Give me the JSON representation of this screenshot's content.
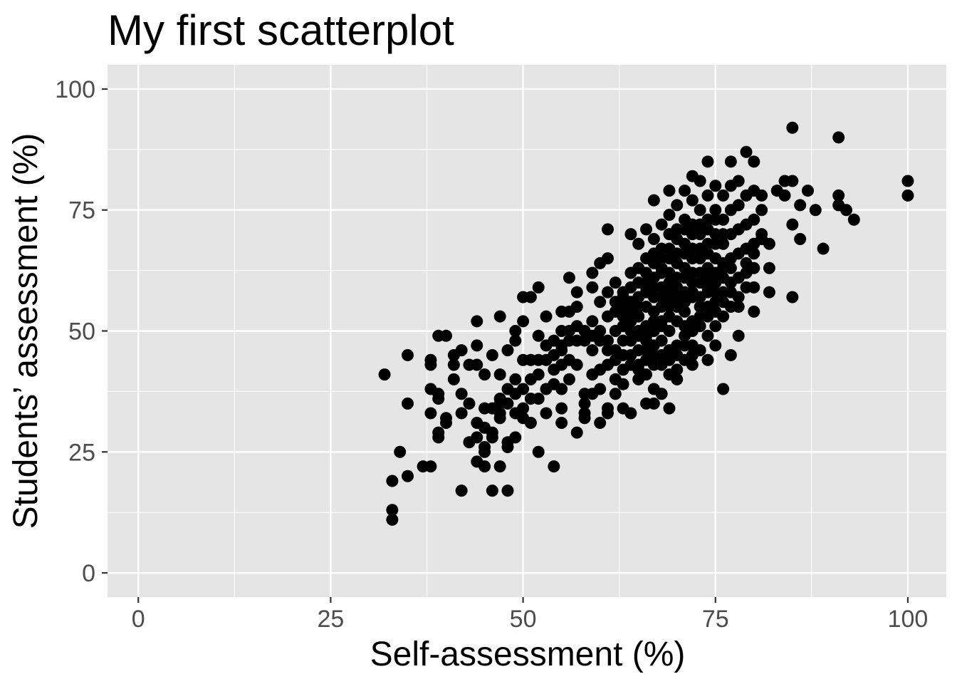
{
  "chart_data": {
    "type": "scatter",
    "title": "My first scatterplot",
    "xlabel": "Self-assessment (%)",
    "ylabel": "Students’ assessment (%)",
    "xlim": [
      -4,
      105
    ],
    "ylim": [
      -5,
      105
    ],
    "x_ticks": [
      0,
      25,
      50,
      75,
      100
    ],
    "y_ticks": [
      0,
      25,
      50,
      75,
      100
    ],
    "x_tick_labels": [
      "0",
      "25",
      "50",
      "75",
      "100"
    ],
    "y_tick_labels": [
      "0",
      "25",
      "50",
      "75",
      "100"
    ],
    "grid": true,
    "legend": "none",
    "colors": {
      "panel": "#e5e5e5",
      "grid": "#ffffff",
      "point": "#000000",
      "tick": "#4d4d4d",
      "tick_mark": "#333333"
    },
    "points": [
      [
        32,
        41
      ],
      [
        33,
        19
      ],
      [
        33,
        13
      ],
      [
        33,
        11
      ],
      [
        34,
        25
      ],
      [
        35,
        45
      ],
      [
        35,
        35
      ],
      [
        35,
        20
      ],
      [
        37,
        22
      ],
      [
        38,
        22
      ],
      [
        38,
        44
      ],
      [
        38,
        43
      ],
      [
        38,
        38
      ],
      [
        38,
        33
      ],
      [
        39,
        49
      ],
      [
        39,
        37
      ],
      [
        39,
        36
      ],
      [
        39,
        29
      ],
      [
        39,
        28
      ],
      [
        40,
        49
      ],
      [
        40,
        32
      ],
      [
        40,
        31
      ],
      [
        41,
        45
      ],
      [
        41,
        43
      ],
      [
        41,
        40
      ],
      [
        42,
        46
      ],
      [
        42,
        37
      ],
      [
        42,
        17
      ],
      [
        43,
        43
      ],
      [
        43,
        27
      ],
      [
        44,
        52
      ],
      [
        44,
        47
      ],
      [
        44,
        43
      ],
      [
        44,
        28
      ],
      [
        44,
        23
      ],
      [
        45,
        41
      ],
      [
        45,
        34
      ],
      [
        45,
        26
      ],
      [
        45,
        25
      ],
      [
        45,
        22
      ],
      [
        46,
        45
      ],
      [
        46,
        29
      ],
      [
        46,
        28
      ],
      [
        46,
        17
      ],
      [
        47,
        53
      ],
      [
        47,
        41
      ],
      [
        47,
        35
      ],
      [
        47,
        33
      ],
      [
        47,
        32
      ],
      [
        47,
        22
      ],
      [
        48,
        46
      ],
      [
        48,
        35
      ],
      [
        48,
        27
      ],
      [
        48,
        26
      ],
      [
        48,
        17
      ],
      [
        49,
        50
      ],
      [
        49,
        48
      ],
      [
        49,
        40
      ],
      [
        49,
        33
      ],
      [
        49,
        28
      ],
      [
        50,
        52
      ],
      [
        50,
        44
      ],
      [
        50,
        34
      ],
      [
        50,
        32
      ],
      [
        50,
        57
      ],
      [
        51,
        57
      ],
      [
        51,
        44
      ],
      [
        51,
        36
      ],
      [
        51,
        31
      ],
      [
        52,
        59
      ],
      [
        52,
        49
      ],
      [
        52,
        44
      ],
      [
        52,
        36
      ],
      [
        52,
        25
      ],
      [
        53,
        53
      ],
      [
        53,
        47
      ],
      [
        53,
        38
      ],
      [
        53,
        33
      ],
      [
        54,
        45
      ],
      [
        54,
        42
      ],
      [
        54,
        39
      ],
      [
        54,
        22
      ],
      [
        55,
        54
      ],
      [
        55,
        50
      ],
      [
        55,
        46
      ],
      [
        55,
        43
      ],
      [
        55,
        38
      ],
      [
        55,
        34
      ],
      [
        55,
        31
      ],
      [
        56,
        61
      ],
      [
        56,
        54
      ],
      [
        56,
        50
      ],
      [
        56,
        44
      ],
      [
        56,
        40
      ],
      [
        57,
        58
      ],
      [
        57,
        55
      ],
      [
        57,
        48
      ],
      [
        57,
        43
      ],
      [
        57,
        29
      ],
      [
        58,
        48
      ],
      [
        58,
        37
      ],
      [
        58,
        35
      ],
      [
        58,
        33
      ],
      [
        58,
        32
      ],
      [
        59,
        62
      ],
      [
        59,
        59
      ],
      [
        59,
        52
      ],
      [
        59,
        46
      ],
      [
        59,
        41
      ],
      [
        59,
        37
      ],
      [
        60,
        64
      ],
      [
        60,
        56
      ],
      [
        60,
        50
      ],
      [
        60,
        42
      ],
      [
        60,
        38
      ],
      [
        60,
        31
      ],
      [
        61,
        71
      ],
      [
        61,
        65
      ],
      [
        61,
        58
      ],
      [
        61,
        53
      ],
      [
        61,
        48
      ],
      [
        61,
        43
      ],
      [
        61,
        34
      ],
      [
        61,
        33
      ],
      [
        62,
        60
      ],
      [
        62,
        54
      ],
      [
        62,
        50
      ],
      [
        62,
        46
      ],
      [
        62,
        40
      ],
      [
        62,
        37
      ],
      [
        63,
        58
      ],
      [
        63,
        55
      ],
      [
        63,
        51
      ],
      [
        63,
        48
      ],
      [
        63,
        42
      ],
      [
        63,
        39
      ],
      [
        63,
        34
      ],
      [
        64,
        70
      ],
      [
        64,
        62
      ],
      [
        64,
        59
      ],
      [
        64,
        54
      ],
      [
        64,
        50
      ],
      [
        64,
        45
      ],
      [
        64,
        33
      ],
      [
        65,
        68
      ],
      [
        65,
        63
      ],
      [
        65,
        57
      ],
      [
        65,
        53
      ],
      [
        65,
        49
      ],
      [
        65,
        43
      ],
      [
        65,
        40
      ],
      [
        66,
        71
      ],
      [
        66,
        65
      ],
      [
        66,
        60
      ],
      [
        66,
        55
      ],
      [
        66,
        51
      ],
      [
        66,
        46
      ],
      [
        66,
        41
      ],
      [
        66,
        35
      ],
      [
        67,
        77
      ],
      [
        67,
        69
      ],
      [
        67,
        64
      ],
      [
        67,
        59
      ],
      [
        67,
        54
      ],
      [
        67,
        50
      ],
      [
        67,
        45
      ],
      [
        67,
        38
      ],
      [
        67,
        35
      ],
      [
        68,
        72
      ],
      [
        68,
        67
      ],
      [
        68,
        62
      ],
      [
        68,
        57
      ],
      [
        68,
        52
      ],
      [
        68,
        48
      ],
      [
        68,
        43
      ],
      [
        68,
        37
      ],
      [
        69,
        79
      ],
      [
        69,
        74
      ],
      [
        69,
        70
      ],
      [
        69,
        65
      ],
      [
        69,
        60
      ],
      [
        69,
        55
      ],
      [
        69,
        50
      ],
      [
        69,
        46
      ],
      [
        69,
        41
      ],
      [
        69,
        34
      ],
      [
        70,
        76
      ],
      [
        70,
        71
      ],
      [
        70,
        66
      ],
      [
        70,
        61
      ],
      [
        70,
        56
      ],
      [
        70,
        52
      ],
      [
        70,
        47
      ],
      [
        70,
        42
      ],
      [
        70,
        40
      ],
      [
        71,
        79
      ],
      [
        71,
        73
      ],
      [
        71,
        68
      ],
      [
        71,
        63
      ],
      [
        71,
        58
      ],
      [
        71,
        54
      ],
      [
        71,
        49
      ],
      [
        71,
        44
      ],
      [
        72,
        82
      ],
      [
        72,
        77
      ],
      [
        72,
        72
      ],
      [
        72,
        67
      ],
      [
        72,
        62
      ],
      [
        72,
        57
      ],
      [
        72,
        52
      ],
      [
        72,
        47
      ],
      [
        72,
        43
      ],
      [
        73,
        81
      ],
      [
        73,
        75
      ],
      [
        73,
        70
      ],
      [
        73,
        65
      ],
      [
        73,
        60
      ],
      [
        73,
        55
      ],
      [
        73,
        51
      ],
      [
        73,
        46
      ],
      [
        74,
        85
      ],
      [
        74,
        78
      ],
      [
        74,
        73
      ],
      [
        74,
        68
      ],
      [
        74,
        63
      ],
      [
        74,
        58
      ],
      [
        74,
        53
      ],
      [
        74,
        49
      ],
      [
        74,
        44
      ],
      [
        75,
        80
      ],
      [
        75,
        75
      ],
      [
        75,
        70
      ],
      [
        75,
        65
      ],
      [
        75,
        60
      ],
      [
        75,
        56
      ],
      [
        75,
        51
      ],
      [
        75,
        47
      ],
      [
        76,
        78
      ],
      [
        76,
        73
      ],
      [
        76,
        68
      ],
      [
        76,
        63
      ],
      [
        76,
        58
      ],
      [
        76,
        53
      ],
      [
        76,
        38
      ],
      [
        77,
        85
      ],
      [
        77,
        80
      ],
      [
        77,
        75
      ],
      [
        77,
        70
      ],
      [
        77,
        65
      ],
      [
        77,
        60
      ],
      [
        77,
        55
      ],
      [
        77,
        45
      ],
      [
        78,
        81
      ],
      [
        78,
        76
      ],
      [
        78,
        71
      ],
      [
        78,
        66
      ],
      [
        78,
        61
      ],
      [
        78,
        55
      ],
      [
        78,
        49
      ],
      [
        79,
        87
      ],
      [
        79,
        78
      ],
      [
        79,
        72
      ],
      [
        79,
        67
      ],
      [
        79,
        62
      ],
      [
        79,
        59
      ],
      [
        80,
        85
      ],
      [
        80,
        79
      ],
      [
        80,
        73
      ],
      [
        80,
        68
      ],
      [
        80,
        63
      ],
      [
        80,
        59
      ],
      [
        80,
        54
      ],
      [
        81,
        78
      ],
      [
        81,
        75
      ],
      [
        81,
        70
      ],
      [
        81,
        69
      ],
      [
        82,
        68
      ],
      [
        82,
        63
      ],
      [
        82,
        58
      ],
      [
        83,
        79
      ],
      [
        84,
        81
      ],
      [
        84,
        78
      ],
      [
        85,
        92
      ],
      [
        85,
        81
      ],
      [
        85,
        72
      ],
      [
        85,
        57
      ],
      [
        86,
        76
      ],
      [
        86,
        69
      ],
      [
        87,
        79
      ],
      [
        88,
        75
      ],
      [
        89,
        67
      ],
      [
        91,
        90
      ],
      [
        91,
        78
      ],
      [
        91,
        76
      ],
      [
        92,
        75
      ],
      [
        93,
        73
      ],
      [
        100,
        81
      ],
      [
        100,
        78
      ],
      [
        63,
        53
      ],
      [
        64,
        56
      ],
      [
        65,
        55
      ],
      [
        66,
        58
      ],
      [
        67,
        57
      ],
      [
        68,
        59
      ],
      [
        69,
        58
      ],
      [
        70,
        59
      ],
      [
        71,
        61
      ],
      [
        72,
        60
      ],
      [
        73,
        62
      ],
      [
        74,
        61
      ],
      [
        75,
        62
      ],
      [
        76,
        64
      ],
      [
        77,
        63
      ],
      [
        66,
        62
      ],
      [
        67,
        61
      ],
      [
        68,
        63
      ],
      [
        69,
        62
      ],
      [
        70,
        64
      ],
      [
        71,
        66
      ],
      [
        72,
        65
      ],
      [
        73,
        67
      ],
      [
        74,
        66
      ],
      [
        75,
        68
      ],
      [
        64,
        48
      ],
      [
        65,
        50
      ],
      [
        66,
        49
      ],
      [
        67,
        52
      ],
      [
        68,
        51
      ],
      [
        69,
        53
      ],
      [
        70,
        55
      ],
      [
        71,
        56
      ],
      [
        72,
        58
      ],
      [
        73,
        57
      ],
      [
        74,
        59
      ],
      [
        75,
        58
      ],
      [
        76,
        61
      ],
      [
        65,
        60
      ],
      [
        66,
        59
      ],
      [
        67,
        66
      ],
      [
        68,
        65
      ],
      [
        69,
        67
      ],
      [
        70,
        69
      ],
      [
        71,
        71
      ],
      [
        72,
        70
      ],
      [
        73,
        72
      ],
      [
        74,
        71
      ],
      [
        75,
        73
      ],
      [
        76,
        70
      ],
      [
        62,
        56
      ],
      [
        63,
        57
      ],
      [
        64,
        52
      ],
      [
        65,
        46
      ],
      [
        66,
        48
      ],
      [
        67,
        47
      ],
      [
        68,
        55
      ],
      [
        69,
        56
      ],
      [
        70,
        57
      ],
      [
        71,
        51
      ],
      [
        72,
        50
      ],
      [
        73,
        53
      ],
      [
        74,
        55
      ],
      [
        75,
        54
      ],
      [
        76,
        56
      ],
      [
        77,
        58
      ],
      [
        78,
        57
      ],
      [
        79,
        64
      ],
      [
        80,
        66
      ],
      [
        70,
        45
      ],
      [
        71,
        47
      ],
      [
        72,
        45
      ],
      [
        69,
        44
      ],
      [
        68,
        45
      ],
      [
        67,
        43
      ],
      [
        66,
        44
      ],
      [
        65,
        42
      ],
      [
        64,
        43
      ],
      [
        63,
        45
      ],
      [
        62,
        44
      ],
      [
        61,
        46
      ],
      [
        60,
        48
      ],
      [
        59,
        49
      ],
      [
        58,
        50
      ],
      [
        57,
        51
      ],
      [
        56,
        48
      ],
      [
        55,
        47
      ],
      [
        54,
        48
      ],
      [
        53,
        44
      ],
      [
        52,
        41
      ],
      [
        51,
        40
      ],
      [
        50,
        38
      ],
      [
        49,
        37
      ],
      [
        48,
        38
      ],
      [
        47,
        36
      ],
      [
        46,
        34
      ],
      [
        45,
        30
      ],
      [
        44,
        31
      ],
      [
        43,
        35
      ],
      [
        42,
        33
      ]
    ]
  }
}
